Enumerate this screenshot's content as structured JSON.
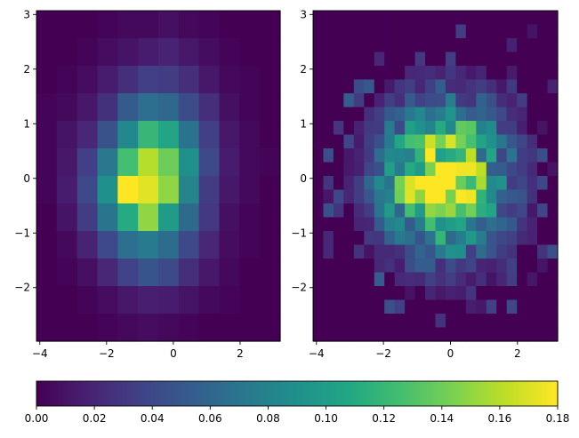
{
  "chart_data": [
    {
      "type": "heatmap",
      "title": "",
      "xlabel": "",
      "ylabel": "",
      "x_range": [
        -4.1,
        3.2
      ],
      "y_range": [
        -2.98,
        3.07
      ],
      "x_ticks": [
        "−4",
        "−2",
        "0",
        "2"
      ],
      "x_tick_values": [
        -4,
        -2,
        0,
        2
      ],
      "y_ticks": [
        "−2",
        "−1",
        "0",
        "1",
        "2",
        "3"
      ],
      "y_tick_values": [
        -2,
        -1,
        0,
        1,
        2,
        3
      ],
      "bins": [
        12,
        12
      ],
      "grid": false,
      "cells": [
        [
          0.0,
          0.0,
          0.0,
          0.002,
          0.004,
          0.004,
          0.008,
          0.004,
          0.002,
          0.0,
          0.0,
          0.0
        ],
        [
          0.0,
          0.0,
          0.002,
          0.006,
          0.01,
          0.014,
          0.018,
          0.012,
          0.006,
          0.002,
          0.0,
          0.0
        ],
        [
          0.0,
          0.002,
          0.006,
          0.014,
          0.024,
          0.034,
          0.032,
          0.024,
          0.012,
          0.004,
          0.002,
          0.0
        ],
        [
          0.002,
          0.004,
          0.012,
          0.026,
          0.052,
          0.066,
          0.06,
          0.042,
          0.024,
          0.008,
          0.002,
          0.0
        ],
        [
          0.002,
          0.01,
          0.02,
          0.046,
          0.084,
          0.12,
          0.106,
          0.068,
          0.034,
          0.012,
          0.004,
          0.0
        ],
        [
          0.002,
          0.012,
          0.034,
          0.072,
          0.126,
          0.16,
          0.14,
          0.09,
          0.04,
          0.014,
          0.004,
          0.002
        ],
        [
          0.002,
          0.014,
          0.04,
          0.09,
          0.18,
          0.172,
          0.15,
          0.082,
          0.032,
          0.012,
          0.004,
          0.0
        ],
        [
          0.0,
          0.01,
          0.032,
          0.07,
          0.11,
          0.15,
          0.098,
          0.062,
          0.03,
          0.008,
          0.002,
          0.0
        ],
        [
          0.0,
          0.004,
          0.018,
          0.04,
          0.066,
          0.074,
          0.064,
          0.04,
          0.02,
          0.006,
          0.002,
          0.0
        ],
        [
          0.0,
          0.002,
          0.008,
          0.02,
          0.036,
          0.048,
          0.04,
          0.024,
          0.012,
          0.004,
          0.0,
          0.0
        ],
        [
          0.0,
          0.0,
          0.002,
          0.006,
          0.012,
          0.016,
          0.014,
          0.01,
          0.004,
          0.002,
          0.0,
          0.0
        ],
        [
          0.0,
          0.0,
          0.0,
          0.002,
          0.004,
          0.006,
          0.004,
          0.002,
          0.0,
          0.0,
          0.0,
          0.0
        ]
      ]
    },
    {
      "type": "heatmap",
      "title": "",
      "xlabel": "",
      "ylabel": "",
      "x_range": [
        -4.1,
        3.2
      ],
      "y_range": [
        -2.98,
        3.07
      ],
      "x_ticks": [
        "−4",
        "−2",
        "0",
        "2"
      ],
      "x_tick_values": [
        -4,
        -2,
        0,
        2
      ],
      "y_ticks": [
        "−2",
        "−1",
        "0",
        "1",
        "2",
        "3"
      ],
      "y_tick_values": [
        -2,
        -1,
        0,
        1,
        2,
        3
      ],
      "bins": [
        24,
        24
      ],
      "grid": false,
      "bin_peak_value": 0.18,
      "noise_seed": 7
    }
  ],
  "colorbar": {
    "range": [
      0.0,
      0.18
    ],
    "colormap": "viridis",
    "ticks": [
      "0.00",
      "0.02",
      "0.04",
      "0.06",
      "0.08",
      "0.10",
      "0.12",
      "0.14",
      "0.16",
      "0.18"
    ],
    "tick_values": [
      0.0,
      0.02,
      0.04,
      0.06,
      0.08,
      0.1,
      0.12,
      0.14,
      0.16,
      0.18
    ]
  }
}
